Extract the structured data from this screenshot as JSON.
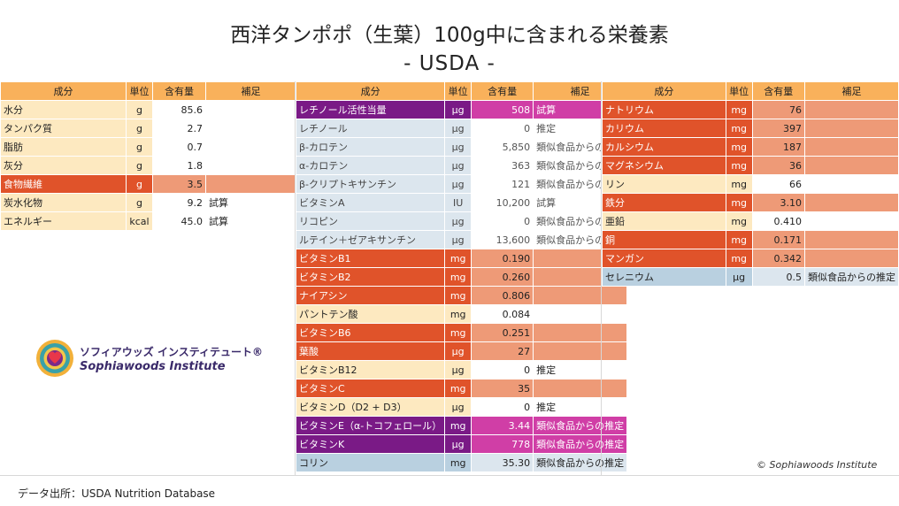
{
  "title": "西洋タンポポ（生葉）100g中に含まれる栄養素",
  "subtitle": "- USDA -",
  "headers": {
    "name": "成分",
    "unit": "単位",
    "value": "含有量",
    "note": "補足"
  },
  "table1": [
    {
      "name": "水分",
      "unit": "g",
      "value": "85.6",
      "note": "",
      "color": "yellow"
    },
    {
      "name": "タンパク質",
      "unit": "g",
      "value": "2.7",
      "note": "",
      "color": "yellow"
    },
    {
      "name": "脂肪",
      "unit": "g",
      "value": "0.7",
      "note": "",
      "color": "yellow"
    },
    {
      "name": "灰分",
      "unit": "g",
      "value": "1.8",
      "note": "",
      "color": "yellow"
    },
    {
      "name": "食物繊維",
      "unit": "g",
      "value": "3.5",
      "note": "",
      "color": "orange"
    },
    {
      "name": "炭水化物",
      "unit": "g",
      "value": "9.2",
      "note": "試算",
      "color": "yellow"
    },
    {
      "name": "エネルギー",
      "unit": "kcal",
      "value": "45.0",
      "note": "試算",
      "color": "yellow"
    }
  ],
  "table2": [
    {
      "name": "レチノール活性当量",
      "unit": "μg",
      "value": "508",
      "note": "試算",
      "color": "purple"
    },
    {
      "name": "レチノール",
      "unit": "μg",
      "value": "0",
      "note": "推定",
      "color": "blue",
      "indent": true
    },
    {
      "name": "β-カロテン",
      "unit": "μg",
      "value": "5,850",
      "note": "類似食品からの推定",
      "color": "blue",
      "indent": true
    },
    {
      "name": "α-カロテン",
      "unit": "μg",
      "value": "363",
      "note": "類似食品からの推定",
      "color": "blue",
      "indent": true
    },
    {
      "name": "β-クリプトキサンチン",
      "unit": "μg",
      "value": "121",
      "note": "類似食品からの推定",
      "color": "blue",
      "indent": true
    },
    {
      "name": "ビタミンA",
      "unit": "IU",
      "value": "10,200",
      "note": "試算",
      "color": "blue",
      "indent": true
    },
    {
      "name": "リコピン",
      "unit": "μg",
      "value": "0",
      "note": "類似食品からの推定",
      "color": "blue",
      "indent": true
    },
    {
      "name": "ルテイン＋ゼアキサンチン",
      "unit": "μg",
      "value": "13,600",
      "note": "類似食品からの推定",
      "color": "blue",
      "indent": true
    },
    {
      "name": "ビタミンB1",
      "unit": "mg",
      "value": "0.190",
      "note": "",
      "color": "orange"
    },
    {
      "name": "ビタミンB2",
      "unit": "mg",
      "value": "0.260",
      "note": "",
      "color": "orange"
    },
    {
      "name": "ナイアシン",
      "unit": "mg",
      "value": "0.806",
      "note": "",
      "color": "orange"
    },
    {
      "name": "パントテン酸",
      "unit": "mg",
      "value": "0.084",
      "note": "",
      "color": "yellow"
    },
    {
      "name": "ビタミンB6",
      "unit": "mg",
      "value": "0.251",
      "note": "",
      "color": "orange"
    },
    {
      "name": "葉酸",
      "unit": "μg",
      "value": "27",
      "note": "",
      "color": "orange"
    },
    {
      "name": "ビタミンB12",
      "unit": "μg",
      "value": "0",
      "note": "推定",
      "color": "yellow"
    },
    {
      "name": "ビタミンC",
      "unit": "mg",
      "value": "35",
      "note": "",
      "color": "orange"
    },
    {
      "name": "ビタミンD（D2 + D3）",
      "unit": "μg",
      "value": "0",
      "note": "推定",
      "color": "yellow"
    },
    {
      "name": "ビタミンE（α-トコフェロール）",
      "unit": "mg",
      "value": "3.44",
      "note": "類似食品からの推定",
      "color": "purple"
    },
    {
      "name": "ビタミンK",
      "unit": "μg",
      "value": "778",
      "note": "類似食品からの推定",
      "color": "purple"
    },
    {
      "name": "コリン",
      "unit": "mg",
      "value": "35.30",
      "note": "類似食品からの推定",
      "color": "steel"
    }
  ],
  "table3": [
    {
      "name": "ナトリウム",
      "unit": "mg",
      "value": "76",
      "note": "",
      "color": "orange"
    },
    {
      "name": "カリウム",
      "unit": "mg",
      "value": "397",
      "note": "",
      "color": "orange"
    },
    {
      "name": "カルシウム",
      "unit": "mg",
      "value": "187",
      "note": "",
      "color": "orange"
    },
    {
      "name": "マグネシウム",
      "unit": "mg",
      "value": "36",
      "note": "",
      "color": "orange"
    },
    {
      "name": "リン",
      "unit": "mg",
      "value": "66",
      "note": "",
      "color": "yellow"
    },
    {
      "name": "鉄分",
      "unit": "mg",
      "value": "3.10",
      "note": "",
      "color": "orange"
    },
    {
      "name": "亜鉛",
      "unit": "mg",
      "value": "0.410",
      "note": "",
      "color": "yellow"
    },
    {
      "name": "銅",
      "unit": "mg",
      "value": "0.171",
      "note": "",
      "color": "orange"
    },
    {
      "name": "マンガン",
      "unit": "mg",
      "value": "0.342",
      "note": "",
      "color": "orange"
    },
    {
      "name": "セレニウム",
      "unit": "μg",
      "value": "0.5",
      "note": "類似食品からの推定",
      "color": "steel"
    }
  ],
  "brand": {
    "jp": "ソフィアウッズ インスティテュート®",
    "en": "Sophiawoods Institute",
    "logo_icon": "heart-sun-logo-icon"
  },
  "copyright": "© Sophiawoods Institute",
  "source": "データ出所：USDA Nutrition Database"
}
